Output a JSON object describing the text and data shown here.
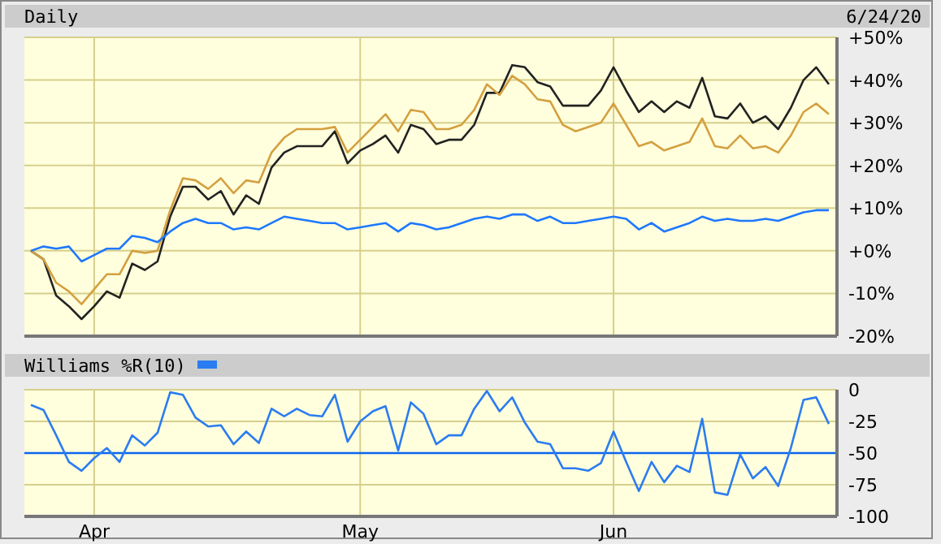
{
  "chart_data": [
    {
      "type": "line",
      "title": "Daily",
      "annotations": [
        "6/24/20"
      ],
      "categories": [
        null,
        null,
        null,
        null,
        null,
        null,
        null,
        null,
        null,
        null,
        null,
        null,
        null,
        null,
        null,
        null,
        null,
        null,
        null,
        null,
        null,
        null,
        null,
        null,
        null,
        null,
        null,
        null,
        null,
        null,
        null,
        null,
        null,
        null,
        null,
        null,
        null,
        null,
        null,
        null,
        null,
        null,
        null,
        null,
        null,
        null,
        null,
        null,
        null,
        null,
        null,
        null,
        null,
        null,
        null,
        null,
        null,
        null,
        null,
        null,
        null,
        null,
        null,
        null
      ],
      "series": [
        {
          "color": "#222222",
          "values": [
            0,
            -2,
            -10.5,
            -13,
            -16,
            -13,
            -9.5,
            -11,
            -3,
            -4.5,
            -2.5,
            8,
            15,
            15,
            12,
            14,
            8.5,
            13,
            11,
            19.5,
            23,
            24.5,
            24.5,
            24.5,
            28,
            20.5,
            23.5,
            25,
            27,
            23,
            29.5,
            28.5,
            25,
            26,
            26,
            29.5,
            37,
            37,
            43.5,
            43,
            39.5,
            38.5,
            34,
            34,
            34,
            37.5,
            43,
            37.5,
            32.5,
            35,
            32.5,
            35,
            33.5,
            40.5,
            31.5,
            31,
            34.5,
            30,
            31.5,
            28.5,
            33.5,
            40,
            43,
            39
          ]
        },
        {
          "color": "#d4a040",
          "values": [
            0,
            -2,
            -7.5,
            -9.5,
            -12.5,
            -9,
            -5.5,
            -5.5,
            0,
            -0.5,
            0,
            9.5,
            17,
            16.5,
            14.5,
            17,
            13.5,
            16.5,
            16,
            23,
            26.5,
            28.5,
            28.5,
            28.5,
            29,
            23,
            26,
            29,
            32,
            28,
            33,
            32.5,
            28.5,
            28.5,
            29.5,
            33,
            39,
            36.5,
            41,
            39,
            35.5,
            35,
            29.5,
            28,
            29,
            30,
            34.5,
            29.5,
            24.5,
            25.5,
            23.5,
            24.5,
            25.5,
            31,
            24.5,
            24,
            27,
            24,
            24.5,
            23,
            27,
            32.5,
            34.5,
            32
          ]
        },
        {
          "color": "#1e78ff",
          "values": [
            0,
            1,
            0.5,
            1,
            -2.5,
            -1,
            0.5,
            0.5,
            3.5,
            3,
            2,
            4.5,
            6.5,
            7.5,
            6.5,
            6.5,
            5,
            5.5,
            5,
            6.5,
            8,
            7.5,
            7,
            6.5,
            6.5,
            5,
            5.5,
            6,
            6.5,
            4.5,
            6.5,
            6,
            5,
            5.5,
            6.5,
            7.5,
            8,
            7.5,
            8.5,
            8.5,
            7,
            8,
            6.5,
            6.5,
            7,
            7.5,
            8,
            7.5,
            5,
            6.5,
            4.5,
            5.5,
            6.5,
            8,
            7,
            7.5,
            7,
            7,
            7.5,
            7,
            8,
            9,
            9.5,
            9.5
          ]
        }
      ],
      "ylim": [
        -20,
        50
      ],
      "yticks": [
        {
          "value": -20,
          "label": "-20%"
        },
        {
          "value": -10,
          "label": "-10%"
        },
        {
          "value": 0,
          "label": "+0%"
        },
        {
          "value": 10,
          "label": "+10%"
        },
        {
          "value": 20,
          "label": "+20%"
        },
        {
          "value": 30,
          "label": "+30%"
        },
        {
          "value": 40,
          "label": "+40%"
        },
        {
          "value": 50,
          "label": "+50%"
        }
      ],
      "grid": true,
      "tick_labels": "y"
    },
    {
      "type": "line",
      "categories": [
        null,
        null,
        null,
        null,
        null,
        "Apr",
        null,
        null,
        null,
        null,
        null,
        null,
        null,
        null,
        null,
        null,
        null,
        null,
        null,
        null,
        null,
        null,
        null,
        null,
        null,
        null,
        "May",
        null,
        null,
        null,
        null,
        null,
        null,
        null,
        null,
        null,
        null,
        null,
        null,
        null,
        null,
        null,
        null,
        null,
        null,
        null,
        "Jun",
        null,
        null,
        null,
        null,
        null,
        null,
        null,
        null,
        null,
        null,
        null,
        null,
        null,
        null,
        null,
        null,
        null
      ],
      "series": [
        {
          "name": "Williams %R(10)",
          "color": "#2b7cf0",
          "values": [
            -12,
            -16,
            -36,
            -57,
            -64,
            -54,
            -46,
            -57,
            -36,
            -44,
            -34,
            -2,
            -4,
            -22,
            -29,
            -28,
            -43,
            -33,
            -42,
            -15,
            -21,
            -15,
            -20,
            -21,
            -4,
            -41,
            -25,
            -17,
            -13,
            -48,
            -10,
            -19,
            -43,
            -36,
            -36,
            -15,
            -1,
            -17,
            -6,
            -26,
            -41,
            -43,
            -62,
            -62,
            -64,
            -58,
            -33,
            -57,
            -80,
            -57,
            -73,
            -60,
            -65,
            -23,
            -81,
            -83,
            -51,
            -70,
            -61,
            -76,
            -46,
            -8,
            -6,
            -27
          ]
        }
      ],
      "ylim": [
        -100,
        0
      ],
      "yticks": [
        -100,
        -75,
        -50,
        -25,
        0
      ],
      "ref_lines": [
        {
          "axis": "y",
          "value": -50,
          "color": "#0a64f0"
        }
      ],
      "grid": true,
      "legend": "top"
    }
  ]
}
